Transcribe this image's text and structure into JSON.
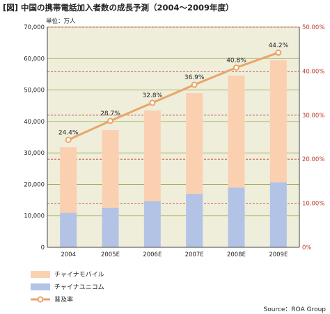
{
  "title": "[図] 中国の携帯電話加入者数の成長予測（2004〜2009年度）",
  "unit": "単位：万人",
  "source": "Source：ROA Group",
  "colors": {
    "plot_bg": "#efeedb",
    "mobile": "#fbd0b1",
    "unicom": "#b3c3e6",
    "rate_line": "#e9a56a",
    "left_grid": "#9aa64a",
    "right_grid": "#c0392b"
  },
  "legend": {
    "mobile": "チャイナモバイル",
    "unicom": "チャイナユニコム",
    "rate": "普及率"
  },
  "chart_data": {
    "type": "bar",
    "stacked": true,
    "categories": [
      "2004",
      "2005E",
      "2006E",
      "2007E",
      "2008E",
      "2009E"
    ],
    "series": [
      {
        "name": "チャイナユニコム",
        "axis": "left",
        "values": [
          11000,
          12600,
          14700,
          17000,
          19000,
          20700
        ]
      },
      {
        "name": "チャイナモバイル",
        "axis": "left",
        "values": [
          20800,
          24700,
          28800,
          32000,
          35600,
          38800
        ]
      },
      {
        "name": "普及率",
        "type": "line",
        "axis": "right",
        "values": [
          24.4,
          28.7,
          32.8,
          36.9,
          40.8,
          44.2
        ]
      }
    ],
    "rate_labels": [
      "24.4%",
      "28.7%",
      "32.8%",
      "36.9%",
      "40.8%",
      "44.2%"
    ],
    "y_left": {
      "range": [
        0,
        70000
      ],
      "ticks": [
        "0",
        "10,000",
        "20,000",
        "30,000",
        "40,000",
        "50,000",
        "60,000",
        "70,000"
      ]
    },
    "y_right": {
      "range": [
        0,
        50
      ],
      "ticks": [
        "0%",
        "10.00%",
        "20.00%",
        "30.00%",
        "40.00%",
        "50.00%"
      ]
    },
    "grid": true
  }
}
